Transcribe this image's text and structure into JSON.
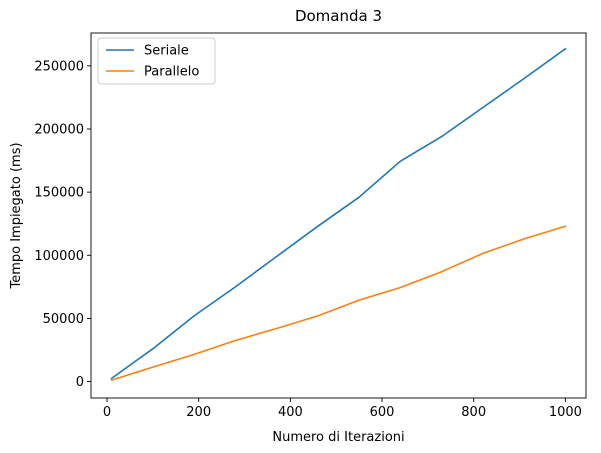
{
  "chart_data": {
    "type": "line",
    "title": "Domanda 3",
    "xlabel": "Numero di Iterazioni",
    "ylabel": "Tempo Impiegato (ms)",
    "xlim": [
      -35,
      1045
    ],
    "ylim": [
      -13000,
      276000
    ],
    "xticks": [
      0,
      200,
      400,
      600,
      800,
      1000
    ],
    "yticks": [
      0,
      50000,
      100000,
      150000,
      200000,
      250000
    ],
    "x": [
      10,
      100,
      190,
      280,
      370,
      460,
      550,
      640,
      730,
      820,
      910,
      1000
    ],
    "series": [
      {
        "name": "Seriale",
        "color": "#1f77b4",
        "values": [
          2500,
          26000,
          52000,
          75000,
          99000,
          123000,
          146000,
          174500,
          194000,
          217000,
          240000,
          263500
        ]
      },
      {
        "name": "Parallelo",
        "color": "#ff7f0e",
        "values": [
          1200,
          11500,
          21500,
          32500,
          42000,
          52000,
          64500,
          74500,
          87000,
          101500,
          113000,
          123000
        ]
      }
    ],
    "legend_position": "top-left",
    "grid": false
  }
}
